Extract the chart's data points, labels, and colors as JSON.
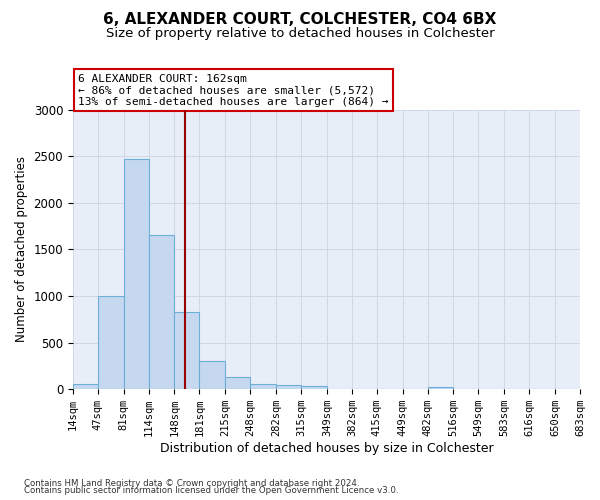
{
  "title": "6, ALEXANDER COURT, COLCHESTER, CO4 6BX",
  "subtitle": "Size of property relative to detached houses in Colchester",
  "xlabel": "Distribution of detached houses by size in Colchester",
  "ylabel": "Number of detached properties",
  "footnote1": "Contains HM Land Registry data © Crown copyright and database right 2024.",
  "footnote2": "Contains public sector information licensed under the Open Government Licence v3.0.",
  "bin_edges": [
    14,
    47,
    81,
    114,
    148,
    181,
    215,
    248,
    282,
    315,
    349,
    382,
    415,
    449,
    482,
    516,
    549,
    583,
    616,
    650,
    683
  ],
  "bar_heights": [
    60,
    1000,
    2470,
    1650,
    830,
    300,
    130,
    60,
    50,
    30,
    0,
    0,
    0,
    0,
    25,
    0,
    0,
    0,
    0,
    0
  ],
  "bar_color": "#c5d8f0",
  "bar_edge_color": "#6baed6",
  "property_size": 162,
  "vline_color": "#990000",
  "annotation_line1": "6 ALEXANDER COURT: 162sqm",
  "annotation_line2": "← 86% of detached houses are smaller (5,572)",
  "annotation_line3": "13% of semi-detached houses are larger (864) →",
  "annotation_box_color": "#cc0000",
  "ylim": [
    0,
    3000
  ],
  "yticks": [
    0,
    500,
    1000,
    1500,
    2000,
    2500,
    3000
  ],
  "grid_color": "#d0d8e8",
  "background_color": "#e8eef8",
  "title_fontsize": 11,
  "subtitle_fontsize": 9.5,
  "tick_label_fontsize": 7.5,
  "ylabel_fontsize": 8.5,
  "xlabel_fontsize": 9,
  "annotation_fontsize": 8
}
